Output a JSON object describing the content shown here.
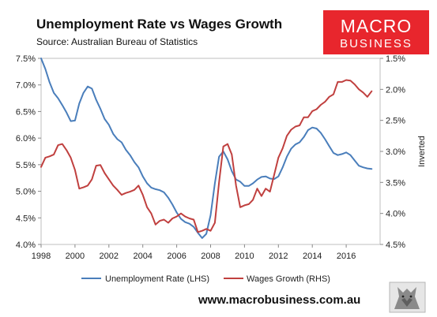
{
  "header": {
    "title": "Unemployment Rate vs Wages Growth",
    "subtitle": "Source: Australian Bureau of Statistics"
  },
  "logo": {
    "line1": "MACRO",
    "line2": "BUSINESS",
    "color": "#e8262d"
  },
  "footer": {
    "website": "www.macrobusiness.com.au"
  },
  "chart_data": {
    "type": "line",
    "title": "Unemployment Rate vs Wages Growth",
    "subtitle": "Source: Australian Bureau of Statistics",
    "xlabel": "",
    "ylabel_left": "",
    "ylabel_right": "Inverted",
    "x_ticks": [
      "1998",
      "2000",
      "2002",
      "2004",
      "2006",
      "2008",
      "2010",
      "2012",
      "2014",
      "2016"
    ],
    "xlim": [
      1998,
      2018
    ],
    "left_axis": {
      "ylim": [
        4.0,
        7.5
      ],
      "ticks": [
        "4.0%",
        "4.5%",
        "5.0%",
        "5.5%",
        "6.0%",
        "6.5%",
        "7.0%",
        "7.5%"
      ]
    },
    "right_axis": {
      "ylim": [
        1.5,
        4.5
      ],
      "inverted": true,
      "ticks": [
        "1.5%",
        "2.0%",
        "2.5%",
        "3.0%",
        "3.5%",
        "4.0%",
        "4.5%"
      ]
    },
    "grid": false,
    "legend_position": "bottom",
    "series": [
      {
        "name": "Unemployment Rate (LHS)",
        "axis": "left",
        "color": "#4a7ebb",
        "points": [
          [
            1998.0,
            7.5
          ],
          [
            1998.25,
            7.3
          ],
          [
            1998.5,
            7.05
          ],
          [
            1998.75,
            6.85
          ],
          [
            1999.0,
            6.75
          ],
          [
            1999.25,
            6.62
          ],
          [
            1999.5,
            6.48
          ],
          [
            1999.75,
            6.32
          ],
          [
            2000.0,
            6.33
          ],
          [
            2000.25,
            6.65
          ],
          [
            2000.5,
            6.85
          ],
          [
            2000.75,
            6.97
          ],
          [
            2001.0,
            6.93
          ],
          [
            2001.25,
            6.72
          ],
          [
            2001.5,
            6.55
          ],
          [
            2001.75,
            6.36
          ],
          [
            2002.0,
            6.25
          ],
          [
            2002.25,
            6.08
          ],
          [
            2002.5,
            5.98
          ],
          [
            2002.75,
            5.92
          ],
          [
            2003.0,
            5.78
          ],
          [
            2003.25,
            5.68
          ],
          [
            2003.5,
            5.55
          ],
          [
            2003.75,
            5.45
          ],
          [
            2004.0,
            5.28
          ],
          [
            2004.25,
            5.15
          ],
          [
            2004.5,
            5.07
          ],
          [
            2004.75,
            5.04
          ],
          [
            2005.0,
            5.02
          ],
          [
            2005.25,
            4.98
          ],
          [
            2005.5,
            4.88
          ],
          [
            2005.75,
            4.75
          ],
          [
            2006.0,
            4.6
          ],
          [
            2006.25,
            4.48
          ],
          [
            2006.5,
            4.42
          ],
          [
            2006.75,
            4.39
          ],
          [
            2007.0,
            4.33
          ],
          [
            2007.25,
            4.22
          ],
          [
            2007.5,
            4.12
          ],
          [
            2007.75,
            4.2
          ],
          [
            2008.0,
            4.55
          ],
          [
            2008.25,
            5.15
          ],
          [
            2008.5,
            5.65
          ],
          [
            2008.75,
            5.75
          ],
          [
            2009.0,
            5.6
          ],
          [
            2009.25,
            5.38
          ],
          [
            2009.5,
            5.22
          ],
          [
            2009.75,
            5.18
          ],
          [
            2010.0,
            5.1
          ],
          [
            2010.25,
            5.1
          ],
          [
            2010.5,
            5.15
          ],
          [
            2010.75,
            5.22
          ],
          [
            2011.0,
            5.27
          ],
          [
            2011.25,
            5.28
          ],
          [
            2011.5,
            5.24
          ],
          [
            2011.75,
            5.23
          ],
          [
            2012.0,
            5.28
          ],
          [
            2012.25,
            5.45
          ],
          [
            2012.5,
            5.65
          ],
          [
            2012.75,
            5.8
          ],
          [
            2013.0,
            5.88
          ],
          [
            2013.25,
            5.92
          ],
          [
            2013.5,
            6.02
          ],
          [
            2013.75,
            6.15
          ],
          [
            2014.0,
            6.2
          ],
          [
            2014.25,
            6.18
          ],
          [
            2014.5,
            6.1
          ],
          [
            2014.75,
            5.98
          ],
          [
            2015.0,
            5.85
          ],
          [
            2015.25,
            5.72
          ],
          [
            2015.5,
            5.68
          ],
          [
            2015.75,
            5.7
          ],
          [
            2016.0,
            5.73
          ],
          [
            2016.25,
            5.68
          ],
          [
            2016.5,
            5.58
          ],
          [
            2016.75,
            5.48
          ],
          [
            2017.0,
            5.45
          ],
          [
            2017.25,
            5.43
          ],
          [
            2017.5,
            5.42
          ]
        ]
      },
      {
        "name": "Wages Growth (RHS)",
        "axis": "right",
        "color": "#c0403f",
        "points": [
          [
            1998.0,
            3.25
          ],
          [
            1998.25,
            3.1
          ],
          [
            1998.5,
            3.08
          ],
          [
            1998.75,
            3.05
          ],
          [
            1999.0,
            2.9
          ],
          [
            1999.25,
            2.88
          ],
          [
            1999.5,
            2.98
          ],
          [
            1999.75,
            3.1
          ],
          [
            2000.0,
            3.3
          ],
          [
            2000.25,
            3.6
          ],
          [
            2000.5,
            3.58
          ],
          [
            2000.75,
            3.55
          ],
          [
            2001.0,
            3.45
          ],
          [
            2001.25,
            3.23
          ],
          [
            2001.5,
            3.22
          ],
          [
            2001.75,
            3.35
          ],
          [
            2002.0,
            3.45
          ],
          [
            2002.25,
            3.55
          ],
          [
            2002.5,
            3.62
          ],
          [
            2002.75,
            3.7
          ],
          [
            2003.0,
            3.67
          ],
          [
            2003.25,
            3.65
          ],
          [
            2003.5,
            3.62
          ],
          [
            2003.75,
            3.55
          ],
          [
            2004.0,
            3.7
          ],
          [
            2004.25,
            3.9
          ],
          [
            2004.5,
            4.0
          ],
          [
            2004.75,
            4.18
          ],
          [
            2005.0,
            4.12
          ],
          [
            2005.25,
            4.1
          ],
          [
            2005.5,
            4.15
          ],
          [
            2005.75,
            4.08
          ],
          [
            2006.0,
            4.05
          ],
          [
            2006.25,
            4.0
          ],
          [
            2006.5,
            4.05
          ],
          [
            2006.75,
            4.08
          ],
          [
            2007.0,
            4.1
          ],
          [
            2007.25,
            4.3
          ],
          [
            2007.5,
            4.28
          ],
          [
            2007.75,
            4.25
          ],
          [
            2008.0,
            4.28
          ],
          [
            2008.25,
            4.15
          ],
          [
            2008.5,
            3.5
          ],
          [
            2008.75,
            2.92
          ],
          [
            2009.0,
            2.88
          ],
          [
            2009.25,
            3.05
          ],
          [
            2009.5,
            3.55
          ],
          [
            2009.75,
            3.9
          ],
          [
            2010.0,
            3.87
          ],
          [
            2010.25,
            3.85
          ],
          [
            2010.5,
            3.78
          ],
          [
            2010.75,
            3.6
          ],
          [
            2011.0,
            3.72
          ],
          [
            2011.25,
            3.6
          ],
          [
            2011.5,
            3.65
          ],
          [
            2011.75,
            3.38
          ],
          [
            2012.0,
            3.1
          ],
          [
            2012.25,
            2.95
          ],
          [
            2012.5,
            2.75
          ],
          [
            2012.75,
            2.65
          ],
          [
            2013.0,
            2.6
          ],
          [
            2013.25,
            2.58
          ],
          [
            2013.5,
            2.45
          ],
          [
            2013.75,
            2.45
          ],
          [
            2014.0,
            2.35
          ],
          [
            2014.25,
            2.32
          ],
          [
            2014.5,
            2.25
          ],
          [
            2014.75,
            2.2
          ],
          [
            2015.0,
            2.12
          ],
          [
            2015.25,
            2.08
          ],
          [
            2015.5,
            1.88
          ],
          [
            2015.75,
            1.88
          ],
          [
            2016.0,
            1.85
          ],
          [
            2016.25,
            1.86
          ],
          [
            2016.5,
            1.92
          ],
          [
            2016.75,
            2.0
          ],
          [
            2017.0,
            2.05
          ],
          [
            2017.25,
            2.12
          ],
          [
            2017.5,
            2.03
          ]
        ]
      }
    ]
  }
}
